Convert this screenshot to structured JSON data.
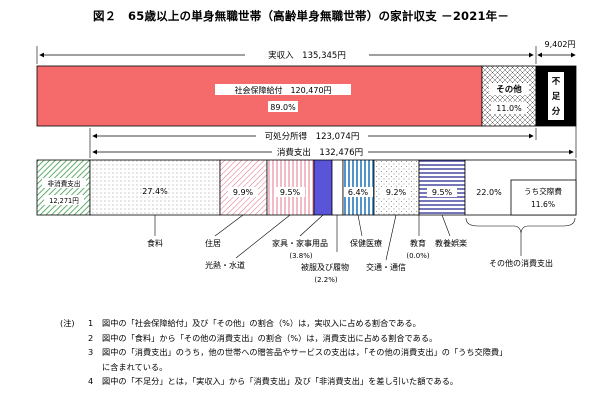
{
  "title": "図２　65歳以上の単身無職世帯（高齢単身無職世帯）の家計収支 －2021年－",
  "chart_data": {
    "type": "bar",
    "income": {
      "total_label": "実収入　135,345円",
      "social_security": {
        "label": "社会保障給付　120,470円",
        "share": "89.0%",
        "value": 120470
      },
      "other": {
        "label": "その他",
        "share": "11.0%"
      },
      "deficit": {
        "label": "不足分",
        "value_label": "9,402円"
      }
    },
    "disposable_income_label": "可処分所得　123,074円",
    "consumption_total_label": "消費支出　132,476円",
    "non_consumption": {
      "label": "非消費支出",
      "value_label": "12,271円"
    },
    "consumption_categories": [
      {
        "name": "食料",
        "share": "27.4%",
        "value": 27.4
      },
      {
        "name": "住居",
        "share": "9.9%",
        "value": 9.9
      },
      {
        "name": "光熱・水道",
        "share": "9.5%",
        "value": 9.5
      },
      {
        "name": "家具・家事用品",
        "share": "(3.8%)",
        "value": 3.8
      },
      {
        "name": "被服及び履物",
        "share": "(2.2%)",
        "value": 2.2
      },
      {
        "name": "保健医療",
        "share": "6.4%",
        "value": 6.4
      },
      {
        "name": "交通・通信",
        "share": "9.2%",
        "value": 9.2
      },
      {
        "name": "教育",
        "share": "(0.0%)",
        "value": 0.0
      },
      {
        "name": "教養娯楽",
        "share": "9.5%",
        "value": 9.5
      },
      {
        "name": "その他の消費支出",
        "share": "22.0%",
        "value": 22.0
      }
    ],
    "entertainment_sub": {
      "label": "うち交際費",
      "share": "11.6%"
    },
    "colors": {
      "social_security": "#f56a6a",
      "deficit": "#000000"
    }
  },
  "notes": {
    "mark": "(注)",
    "items": [
      {
        "num": "1",
        "text": "図中の「社会保障給付」及び「その他」の割合（%）は，実収入に占める割合である。"
      },
      {
        "num": "2",
        "text": "図中の「食料」から「その他の消費支出」の割合（%）は，消費支出に占める割合である。"
      },
      {
        "num": "3",
        "text": "図中の「消費支出」のうち，他の世帯への贈答品やサービスの支出は，「その他の消費支出」の「うち交際費」"
      },
      {
        "num": "",
        "text": "に含まれている。"
      },
      {
        "num": "4",
        "text": "図中の「不足分」とは，「実収入」から「消費支出」及び「非消費支出」を差し引いた額である。"
      }
    ]
  }
}
